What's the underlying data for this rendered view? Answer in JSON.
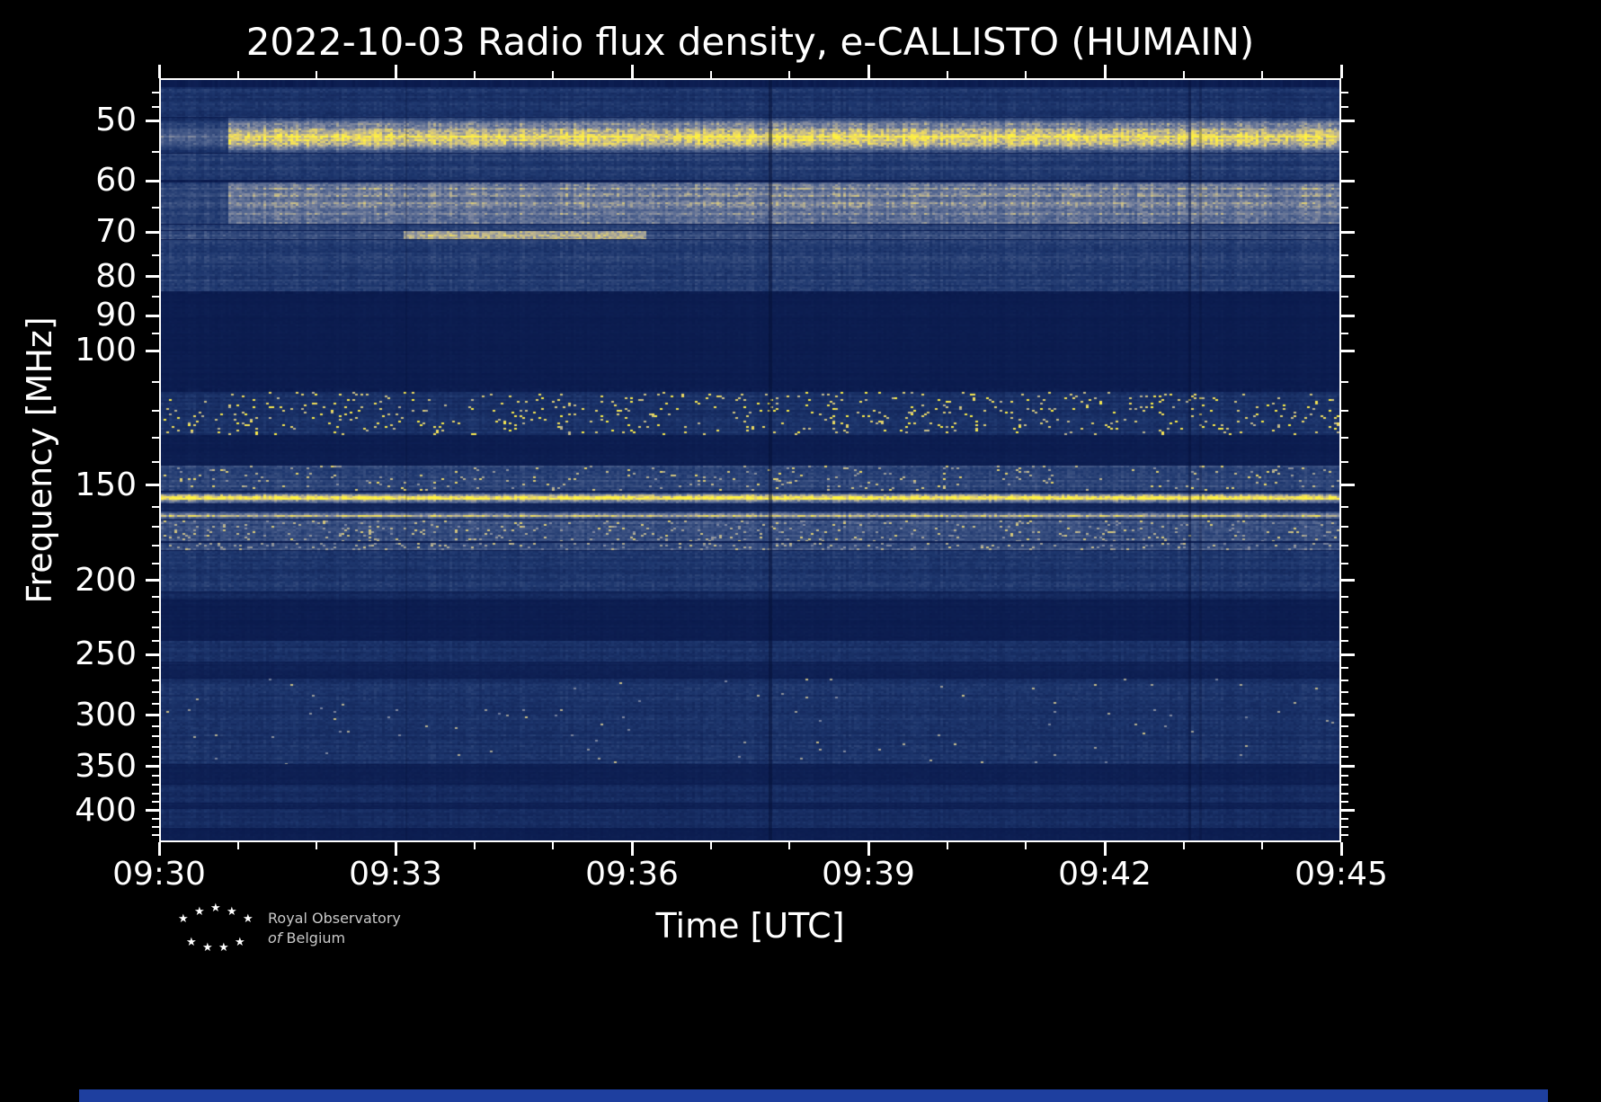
{
  "title": "2022-10-03 Radio flux density, e-CALLISTO (HUMAIN)",
  "chart_data": {
    "type": "heatmap",
    "title": "2022-10-03 Radio flux density, e-CALLISTO (HUMAIN)",
    "date": "2022-10-03",
    "instrument": "e-CALLISTO (HUMAIN)",
    "xlabel": "Time [UTC]",
    "ylabel": "Frequency [MHz]",
    "x_ticks": [
      "09:30",
      "09:33",
      "09:36",
      "09:39",
      "09:42",
      "09:45"
    ],
    "x_tick_minutes": [
      0,
      3,
      6,
      9,
      12,
      15
    ],
    "x_minor_minutes": [
      1,
      2,
      4,
      5,
      7,
      8,
      10,
      11,
      13,
      14
    ],
    "y_ticks": [
      50,
      60,
      70,
      80,
      90,
      100,
      150,
      200,
      250,
      300,
      350,
      400
    ],
    "y_minor_ticks": [
      46,
      48,
      55,
      65,
      75,
      85,
      95,
      110,
      120,
      130,
      140,
      160,
      170,
      180,
      190,
      210,
      220,
      230,
      240,
      260,
      270,
      280,
      290,
      310,
      320,
      330,
      340,
      360,
      370,
      380,
      390,
      410,
      420,
      430
    ],
    "time_range": [
      "09:30",
      "09:45"
    ],
    "freq_range": [
      44,
      440
    ],
    "y_scale": "log-inverted",
    "grid": false,
    "legend": "none",
    "background_intensity": 0.035,
    "colormap": [
      [
        0.0,
        7,
        22,
        72
      ],
      [
        0.18,
        30,
        55,
        110
      ],
      [
        0.38,
        78,
        98,
        142
      ],
      [
        0.55,
        130,
        138,
        160
      ],
      [
        0.7,
        196,
        186,
        140
      ],
      [
        0.85,
        240,
        220,
        95
      ],
      [
        1.0,
        255,
        242,
        64
      ]
    ],
    "bands": [
      {
        "f1": 45.0,
        "f2": 49.2,
        "base": 0.16,
        "var": 0.14
      },
      {
        "f1": 49.3,
        "f2": 54.8,
        "base": 0.92,
        "var": 0.1,
        "profile": "peak",
        "onset": 0.057,
        "pre": 0.45
      },
      {
        "f1": 55.0,
        "f2": 59.5,
        "base": 0.2,
        "var": 0.14
      },
      {
        "f1": 60.0,
        "f2": 68.0,
        "base": 0.5,
        "var": 0.18,
        "onset": 0.057,
        "pre": 0.5
      },
      {
        "f1": 68.2,
        "f2": 69.4,
        "base": 0.22,
        "var": 0.12
      },
      {
        "f1": 69.5,
        "f2": 71.2,
        "base": 0.28,
        "var": 0.14,
        "segment": {
          "x1": 0.205,
          "x2": 0.41,
          "boost": 0.4
        }
      },
      {
        "f1": 71.4,
        "f2": 83.5,
        "base": 0.2,
        "var": 0.15
      },
      {
        "f1": 84.0,
        "f2": 112.0,
        "base": 0.035,
        "var": 0.03
      },
      {
        "f1": 113.0,
        "f2": 129.0,
        "base": 0.14,
        "var": 0.18,
        "speckle": 0.05,
        "speckle_gain": 0.95
      },
      {
        "f1": 129.5,
        "f2": 141.0,
        "base": 0.04,
        "var": 0.03
      },
      {
        "f1": 141.5,
        "f2": 152.5,
        "base": 0.24,
        "var": 0.2,
        "speckle": 0.04,
        "speckle_gain": 0.8
      },
      {
        "f1": 153.5,
        "f2": 158.5,
        "base": 0.95,
        "var": 0.1,
        "profile": "peak"
      },
      {
        "f1": 159.0,
        "f2": 162.0,
        "base": 0.1,
        "var": 0.08
      },
      {
        "f1": 162.5,
        "f2": 166.5,
        "base": 0.7,
        "var": 0.15,
        "profile": "peak"
      },
      {
        "f1": 167.0,
        "f2": 178.0,
        "base": 0.28,
        "var": 0.2,
        "speckle": 0.07,
        "speckle_gain": 0.75
      },
      {
        "f1": 178.5,
        "f2": 182.5,
        "base": 0.32,
        "var": 0.22,
        "speckle": 0.09,
        "speckle_gain": 0.7
      },
      {
        "f1": 183.0,
        "f2": 207.0,
        "base": 0.17,
        "var": 0.12
      },
      {
        "f1": 207.5,
        "f2": 212.0,
        "base": 0.1,
        "var": 0.08
      },
      {
        "f1": 212.5,
        "f2": 240.0,
        "base": 0.04,
        "var": 0.03
      },
      {
        "f1": 240.5,
        "f2": 256.0,
        "base": 0.14,
        "var": 0.1
      },
      {
        "f1": 256.5,
        "f2": 269.0,
        "base": 0.06,
        "var": 0.05
      },
      {
        "f1": 269.5,
        "f2": 349.0,
        "base": 0.15,
        "var": 0.12,
        "speckle": 0.004,
        "speckle_gain": 0.7
      },
      {
        "f1": 350.0,
        "f2": 371.0,
        "base": 0.05,
        "var": 0.04
      },
      {
        "f1": 372.0,
        "f2": 393.0,
        "base": 0.12,
        "var": 0.1
      },
      {
        "f1": 394.0,
        "f2": 399.0,
        "base": 0.06,
        "var": 0.05
      },
      {
        "f1": 400.0,
        "f2": 424.0,
        "base": 0.12,
        "var": 0.1
      },
      {
        "f1": 425.0,
        "f2": 440.0,
        "base": 0.04,
        "var": 0.03
      }
    ],
    "vertical_lines": [
      {
        "x": 0.517,
        "w": 4,
        "alpha": 0.55
      },
      {
        "x": 0.873,
        "w": 3,
        "alpha": 0.4
      },
      {
        "x": 0.882,
        "w": 3,
        "alpha": 0.3
      },
      {
        "x": 0.208,
        "w": 2,
        "alpha": 0.25
      }
    ]
  },
  "footer": {
    "credit_line1": "Royal Observatory",
    "credit_word_of": "of",
    "credit_line2": "Belgium",
    "star_glyph": "★"
  }
}
